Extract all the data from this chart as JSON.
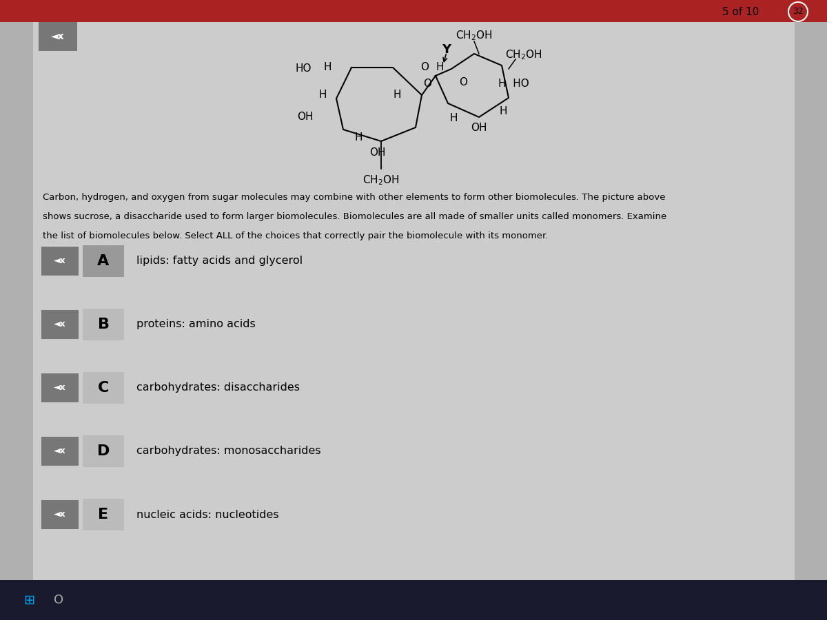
{
  "bg_color": "#b0b0b0",
  "content_bg": "#cccccc",
  "top_bar_color": "#aa2222",
  "paragraph_lines": [
    "Carbon, hydrogen, and oxygen from sugar molecules may combine with other elements to form other biomolecules. The picture above",
    "shows sucrose, a disaccharide used to form larger biomolecules. Biomolecules are all made of smaller units called monomers. Examine",
    "the list of biomolecules below. Select ALL of the choices that correctly pair the biomolecule with its monomer."
  ],
  "choices": [
    {
      "label": "A",
      "text": "lipids: fatty acids and glycerol",
      "label_bg": "#999999"
    },
    {
      "label": "B",
      "text": "proteins: amino acids",
      "label_bg": "#bbbbbb"
    },
    {
      "label": "C",
      "text": "carbohydrates: disaccharides",
      "label_bg": "#bbbbbb"
    },
    {
      "label": "D",
      "text": "carbohydrates: monosaccharides",
      "label_bg": "#bbbbbb"
    },
    {
      "label": "E",
      "text": "nucleic acids: nucleotides",
      "label_bg": "#bbbbbb"
    }
  ],
  "counter_text": "5 of 10",
  "counter_num": "32",
  "taskbar_color": "#1a1a2e",
  "speaker_bg": "#777777"
}
